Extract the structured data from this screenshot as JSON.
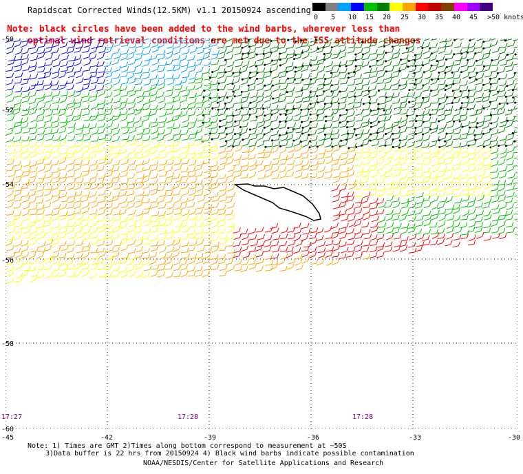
{
  "title": "Rapidscat Corrected Winds(12.5KM) v1.1 20150924 ascending",
  "note": {
    "line1": "Note: black circles have been added to the wind barbs, wherever less than",
    "line2": "optimal wind retrieval conditions are met due to the ISS attitude changes"
  },
  "legend": {
    "colors": [
      "#000000",
      "#808080",
      "#00a0ff",
      "#0000ff",
      "#00c000",
      "#008000",
      "#ffff00",
      "#ffa500",
      "#ff0000",
      "#c00000",
      "#804000",
      "#ff00ff",
      "#a000ff",
      "#400080"
    ],
    "labels": [
      "0",
      "5",
      "10",
      "15",
      "20",
      "25",
      "30",
      "35",
      "40",
      "45",
      ">50 knots"
    ]
  },
  "map": {
    "latitudes": [
      "-50",
      "-52",
      "-54",
      "-56",
      "-58",
      "-60"
    ],
    "longitudes": [
      "-45",
      "-42",
      "-39",
      "-36",
      "-33",
      "-30"
    ],
    "times": [
      "17:27",
      "17:28",
      "17:28"
    ]
  },
  "footer": {
    "line1": "Note: 1) Times are GMT 2)Times along bottom correspond to measurement at ~50S",
    "line2": "3)Data buffer is 22 hrs from 20150924 4) Black wind barbs indicate possible contamination",
    "line3": "NOAA/NESDIS/Center for Satellite Applications and Research"
  }
}
